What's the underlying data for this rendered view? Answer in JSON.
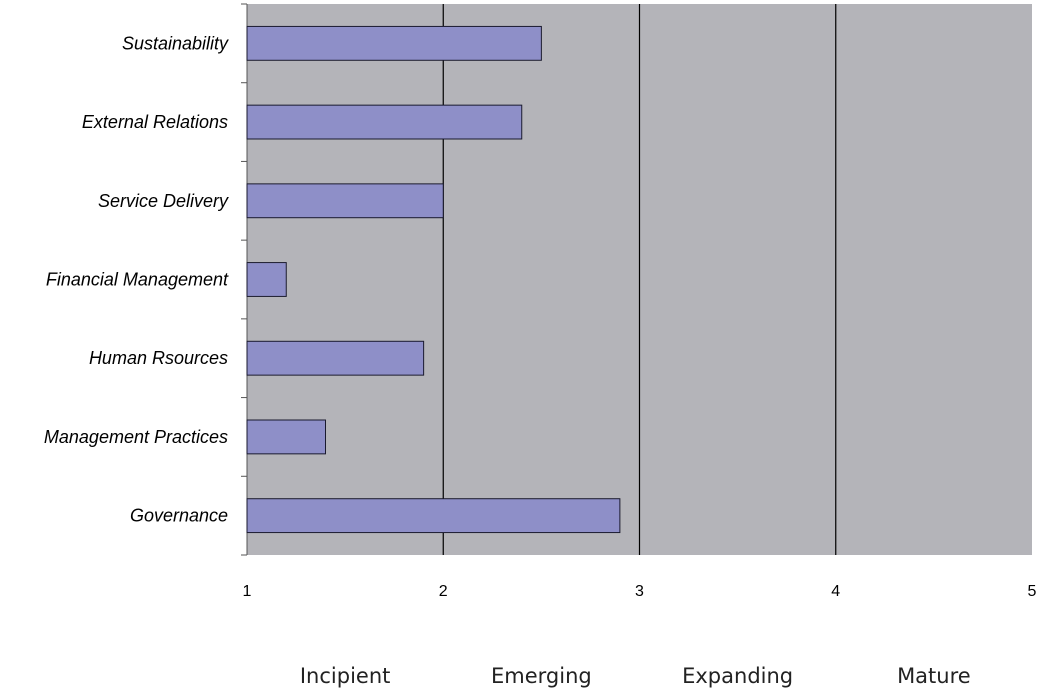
{
  "chart_data": {
    "type": "bar",
    "orientation": "horizontal",
    "title": "",
    "xlabel": "",
    "ylabel": "",
    "categories": [
      "Sustainability",
      "External Relations",
      "Service Delivery",
      "Financial Management",
      "Human Rsources",
      "Management Practices",
      "Governance"
    ],
    "values": [
      2.5,
      2.4,
      2.0,
      1.2,
      1.9,
      1.4,
      2.9
    ],
    "xlim": [
      1,
      5
    ],
    "x_ticks": [
      "1",
      "2",
      "3",
      "4",
      "5"
    ],
    "stage_labels": [
      "Incipient",
      "Emerging",
      "Expanding",
      "Mature"
    ],
    "grid": "vertical",
    "legend": "none",
    "colors": {
      "plot_background": "#b4b4b9",
      "bar_fill": "#8e8fc8",
      "bar_stroke": "#1a1a2e",
      "gridline": "#000000"
    }
  }
}
